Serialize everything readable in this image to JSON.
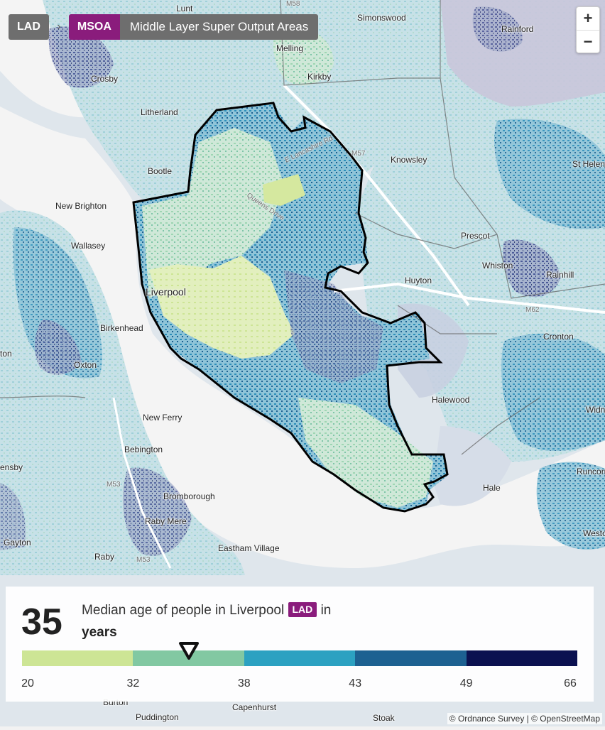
{
  "breadcrumb": {
    "lad_label": "LAD",
    "separator": "›",
    "msoa_label": "MSOA",
    "level_description": "Middle Layer Super Output Areas"
  },
  "zoom": {
    "in_label": "+",
    "out_label": "−"
  },
  "map": {
    "places": [
      {
        "label": "Lunt"
      },
      {
        "label": "Simonswood"
      },
      {
        "label": "Rainford"
      },
      {
        "label": "Melling"
      },
      {
        "label": "Crosby"
      },
      {
        "label": "Kirkby"
      },
      {
        "label": "Litherland"
      },
      {
        "label": "Knowsley"
      },
      {
        "label": "Bootle"
      },
      {
        "label": "St Helens"
      },
      {
        "label": "New Brighton"
      },
      {
        "label": "Wallasey"
      },
      {
        "label": "Prescot"
      },
      {
        "label": "Whiston"
      },
      {
        "label": "Rainhill"
      },
      {
        "label": "Huyton"
      },
      {
        "label": "Liverpool"
      },
      {
        "label": "Birkenhead"
      },
      {
        "label": "Cronton"
      },
      {
        "label": "Oxton"
      },
      {
        "label": "Halewood"
      },
      {
        "label": "New Ferry"
      },
      {
        "label": "Widn"
      },
      {
        "label": "Bebington"
      },
      {
        "label": "Runcorn"
      },
      {
        "label": "Hale"
      },
      {
        "label": "Bromborough"
      },
      {
        "label": "Raby Mere"
      },
      {
        "label": "Westo"
      },
      {
        "label": "Gayton"
      },
      {
        "label": "Eastham Village"
      },
      {
        "label": "Raby"
      },
      {
        "label": "ton"
      },
      {
        "label": "ensby"
      }
    ],
    "roads": [
      {
        "label": "M58"
      },
      {
        "label": "E Lancashire Rd"
      },
      {
        "label": "M57"
      },
      {
        "label": "Queens Drive"
      },
      {
        "label": "M62"
      },
      {
        "label": "M53"
      },
      {
        "label": "M53"
      }
    ],
    "below_panel_places": [
      "Burton",
      "Puddington",
      "Capenhurst",
      "Stoak"
    ],
    "selected_area": "Liverpool"
  },
  "legend": {
    "value": "35",
    "description_prefix": "Median age of people in Liverpool",
    "badge": "LAD",
    "description_suffix": "in",
    "unit": "years",
    "breaks": [
      "20",
      "32",
      "38",
      "43",
      "49",
      "66"
    ],
    "break_values": [
      20,
      32,
      38,
      43,
      49,
      66
    ],
    "colors": [
      "#cde595",
      "#82c8a2",
      "#2ca1c1",
      "#1d6191",
      "#0b1150"
    ],
    "marker_value": 35
  },
  "attribution": "© Ordnance Survey | © OpenStreetMap"
}
